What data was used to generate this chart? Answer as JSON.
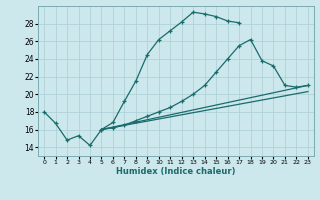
{
  "xlabel": "Humidex (Indice chaleur)",
  "bg_color": "#cce8ec",
  "line_color": "#1a6b6b",
  "grid_color": "#aacdd4",
  "xlim": [
    -0.5,
    23.5
  ],
  "ylim": [
    13.0,
    30.0
  ],
  "yticks": [
    14,
    16,
    18,
    20,
    22,
    24,
    26,
    28
  ],
  "xticks": [
    0,
    1,
    2,
    3,
    4,
    5,
    6,
    7,
    8,
    9,
    10,
    11,
    12,
    13,
    14,
    15,
    16,
    17,
    18,
    19,
    20,
    21,
    22,
    23
  ],
  "line1_x": [
    0,
    1,
    2,
    3,
    4,
    5,
    6,
    7,
    8,
    9,
    10,
    11,
    12,
    13,
    14,
    15,
    16,
    17
  ],
  "line1_y": [
    18.0,
    16.7,
    14.8,
    15.3,
    14.2,
    16.0,
    16.8,
    19.2,
    21.5,
    24.5,
    26.2,
    27.2,
    28.2,
    29.3,
    29.1,
    28.8,
    28.3,
    28.1
  ],
  "line2_x": [
    5,
    6,
    7,
    8,
    9,
    10,
    11,
    12,
    13,
    14,
    15,
    16,
    17,
    18,
    19,
    20,
    21,
    22,
    23
  ],
  "line2_y": [
    16.0,
    16.2,
    16.5,
    17.0,
    17.5,
    18.0,
    18.5,
    19.2,
    20.0,
    21.0,
    22.5,
    24.0,
    25.5,
    26.2,
    23.8,
    23.2,
    21.0,
    20.8,
    21.0
  ],
  "line3_x": [
    5,
    23
  ],
  "line3_y": [
    16.0,
    21.0
  ],
  "line4_x": [
    5,
    23
  ],
  "line4_y": [
    16.0,
    20.3
  ]
}
